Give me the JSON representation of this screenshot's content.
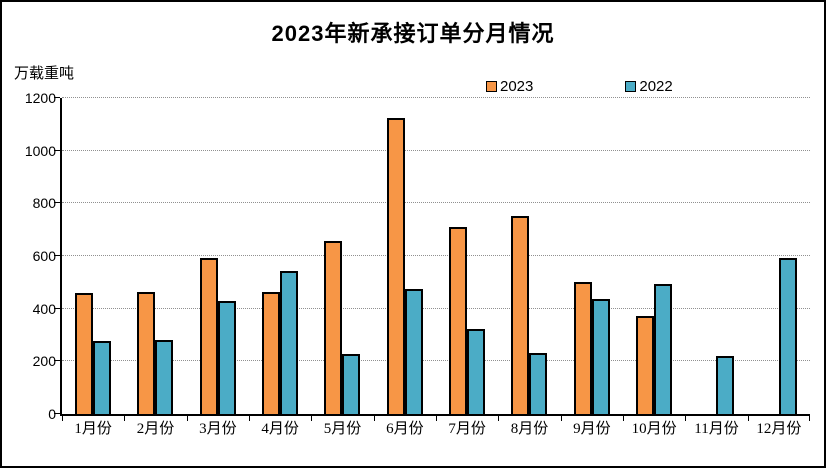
{
  "window": {
    "background_color": "#ffffff",
    "border_color": "#000000"
  },
  "chart": {
    "title": "2023年新承接订单分月情况",
    "unit_label": "万载重吨",
    "colors": {
      "series_2023": "#F79646",
      "series_2022": "#4BACC6",
      "bar_border": "#000000",
      "gridline": "#909090",
      "axis": "#000000",
      "text": "#000000"
    }
  },
  "chart_data": {
    "type": "bar",
    "title": "2023年新承接订单分月情况",
    "xlabel": "",
    "ylabel": "万载重吨",
    "categories": [
      "1月份",
      "2月份",
      "3月份",
      "4月份",
      "5月份",
      "6月份",
      "7月份",
      "8月份",
      "9月份",
      "10月份",
      "11月份",
      "12月份"
    ],
    "series": [
      {
        "name": "2023",
        "color": "#F79646",
        "values": [
          458,
          462,
          592,
          465,
          658,
          1125,
          710,
          753,
          503,
          372,
          null,
          null
        ]
      },
      {
        "name": "2022",
        "color": "#4BACC6",
        "values": [
          279,
          282,
          428,
          543,
          228,
          475,
          324,
          230,
          438,
          495,
          219,
          592
        ]
      }
    ],
    "ylim": [
      0,
      1200
    ],
    "yticks": [
      0,
      200,
      400,
      600,
      800,
      1000,
      1200
    ],
    "grid": true,
    "gridline_style": "dotted",
    "legend_position": "top-center"
  }
}
